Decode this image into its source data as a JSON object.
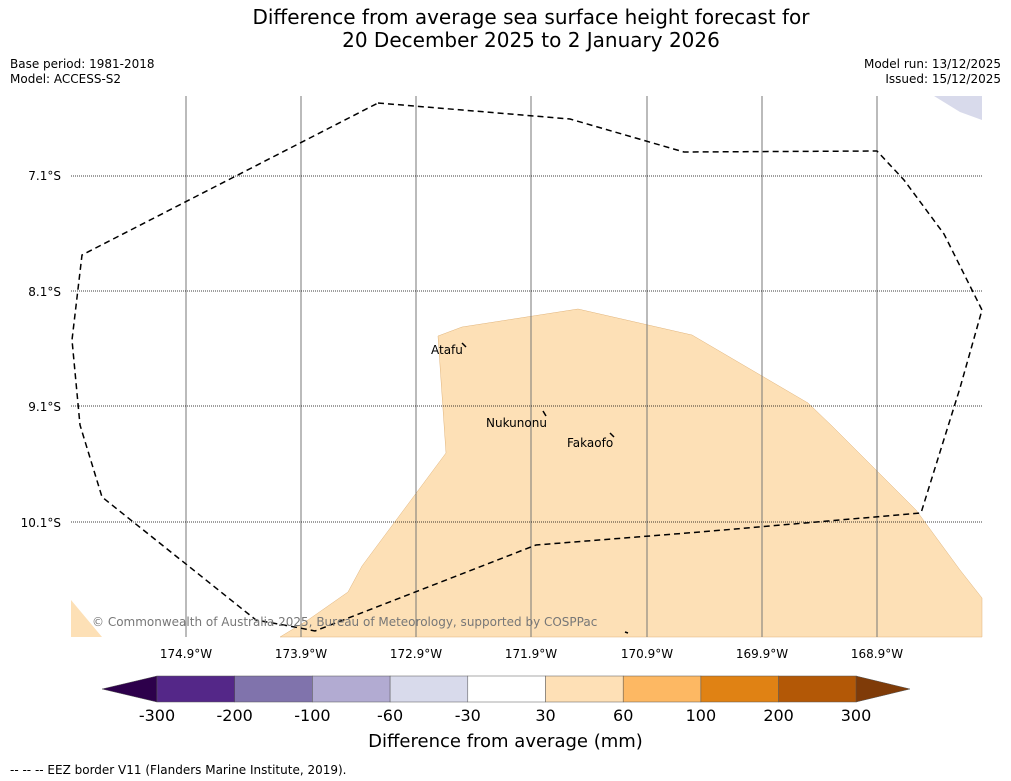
{
  "title": {
    "line1": "Difference from average sea surface height forecast for",
    "line2": "20 December 2025 to 2 January 2026"
  },
  "meta": {
    "base_period": "Base period: 1981-2018",
    "model": "Model: ACCESS-S2",
    "model_run": "Model run: 13/12/2025",
    "issued": "Issued: 15/12/2025"
  },
  "map": {
    "latitudes": [
      "7.1°S",
      "8.1°S",
      "9.1°S",
      "10.1°S"
    ],
    "longitudes": [
      "174.9°W",
      "173.9°W",
      "172.9°W",
      "171.9°W",
      "170.9°W",
      "169.9°W",
      "168.9°W"
    ],
    "places": [
      "Atafu",
      "Nukunonu",
      "Fakaofo"
    ],
    "copyright": "© Commonwealth of Australia 2025, Bureau of Meteorology, supported by COSPPac",
    "anomaly_fill_color": "#fde0b6"
  },
  "colorbar": {
    "ticks": [
      "-300",
      "-200",
      "-100",
      "-60",
      "-30",
      "30",
      "60",
      "100",
      "200",
      "300"
    ],
    "colors": [
      "#2d004b",
      "#542788",
      "#8073ac",
      "#b2abd2",
      "#d8daeb",
      "#ffffff",
      "#fee0b6",
      "#fdb863",
      "#e08214",
      "#b35806",
      "#7f3b08"
    ],
    "label": "Difference from average (mm)"
  },
  "footer": "-- -- -- EEZ border V11 (Flanders Marine Institute, 2019)."
}
